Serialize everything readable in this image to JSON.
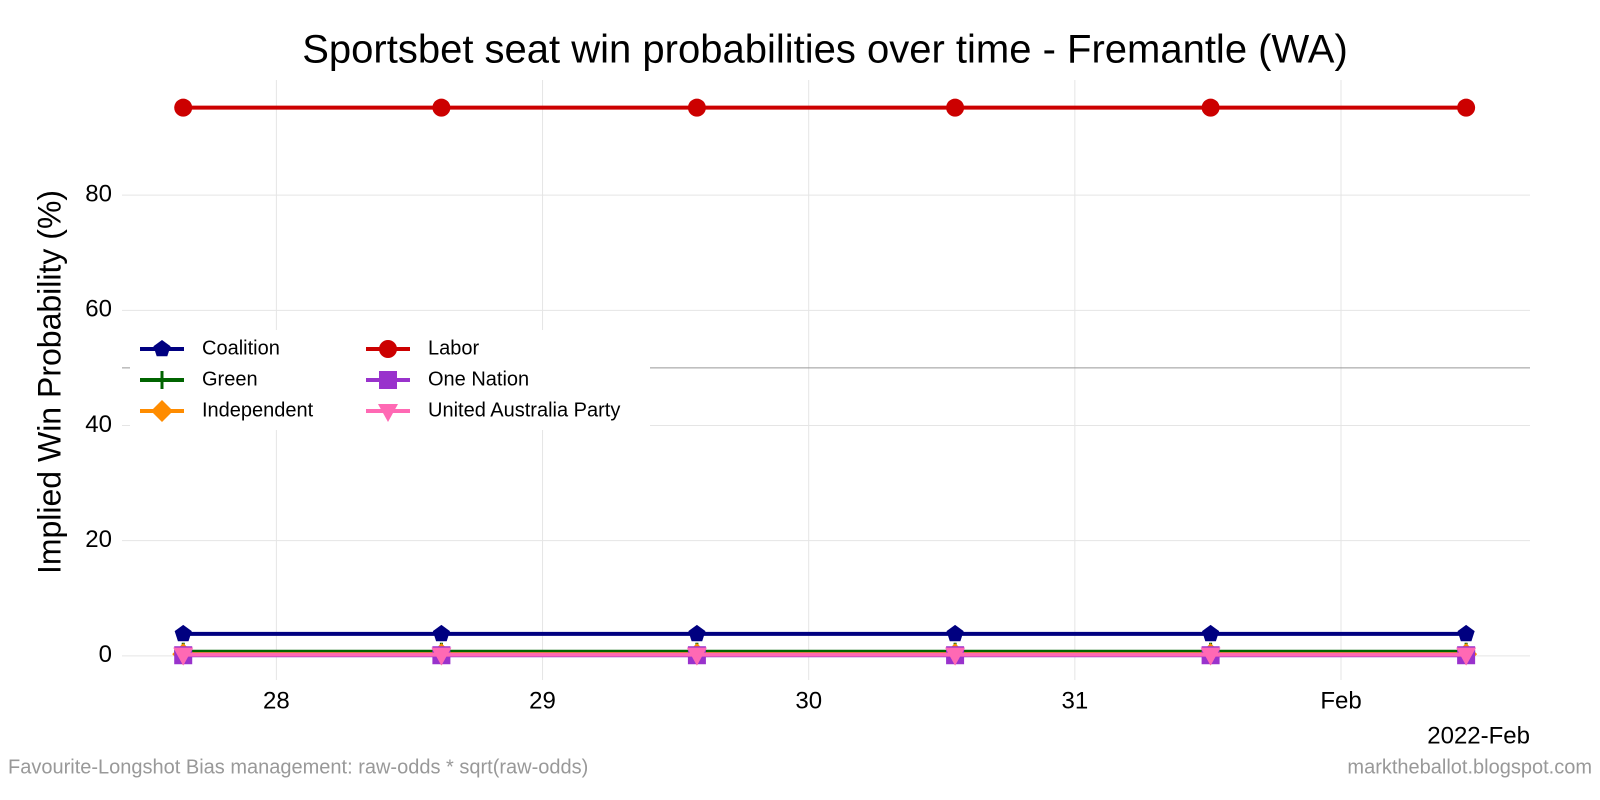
{
  "chart_data": {
    "type": "line",
    "title": "Sportsbet seat win probabilities over time - Fremantle (WA)",
    "ylabel": "Implied Win Probability (%)",
    "x_caption": "2022-Feb",
    "footnote_left": "Favourite-Longshot Bias management: raw-odds * sqrt(raw-odds)",
    "footnote_right": "marktheballot.blogspot.com",
    "x": [
      27.65,
      28.62,
      29.58,
      30.55,
      31.51,
      32.47
    ],
    "xlim": [
      27.42,
      32.71
    ],
    "xticks": [
      {
        "value": 28,
        "label": "28"
      },
      {
        "value": 29,
        "label": "29"
      },
      {
        "value": 30,
        "label": "30"
      },
      {
        "value": 31,
        "label": "31"
      },
      {
        "value": 32,
        "label": "Feb"
      }
    ],
    "ylim": [
      -4.2,
      100
    ],
    "yticks": [
      0,
      20,
      40,
      60,
      80
    ],
    "hline": 50,
    "grid": true,
    "legend": "left",
    "series": [
      {
        "name": "Coalition",
        "color": "#000080",
        "marker": "pentagon",
        "values": [
          3.8,
          3.8,
          3.8,
          3.8,
          3.8,
          3.8
        ]
      },
      {
        "name": "Green",
        "color": "#006400",
        "marker": "plus",
        "values": [
          0.7,
          0.7,
          0.7,
          0.7,
          0.7,
          0.7
        ]
      },
      {
        "name": "Independent",
        "color": "#ff8c00",
        "marker": "diamond",
        "values": [
          0.3,
          0.3,
          0.3,
          0.3,
          0.3,
          0.3
        ]
      },
      {
        "name": "Labor",
        "color": "#cc0000",
        "marker": "circle",
        "values": [
          95.2,
          95.2,
          95.2,
          95.2,
          95.2,
          95.2
        ]
      },
      {
        "name": "One Nation",
        "color": "#9932cc",
        "marker": "square",
        "values": [
          0.1,
          0.1,
          0.1,
          0.1,
          0.1,
          0.1
        ]
      },
      {
        "name": "United Australia Party",
        "color": "#ff69b4",
        "marker": "triangle-down",
        "values": [
          0.2,
          0.2,
          0.2,
          0.2,
          0.2,
          0.2
        ]
      }
    ]
  }
}
